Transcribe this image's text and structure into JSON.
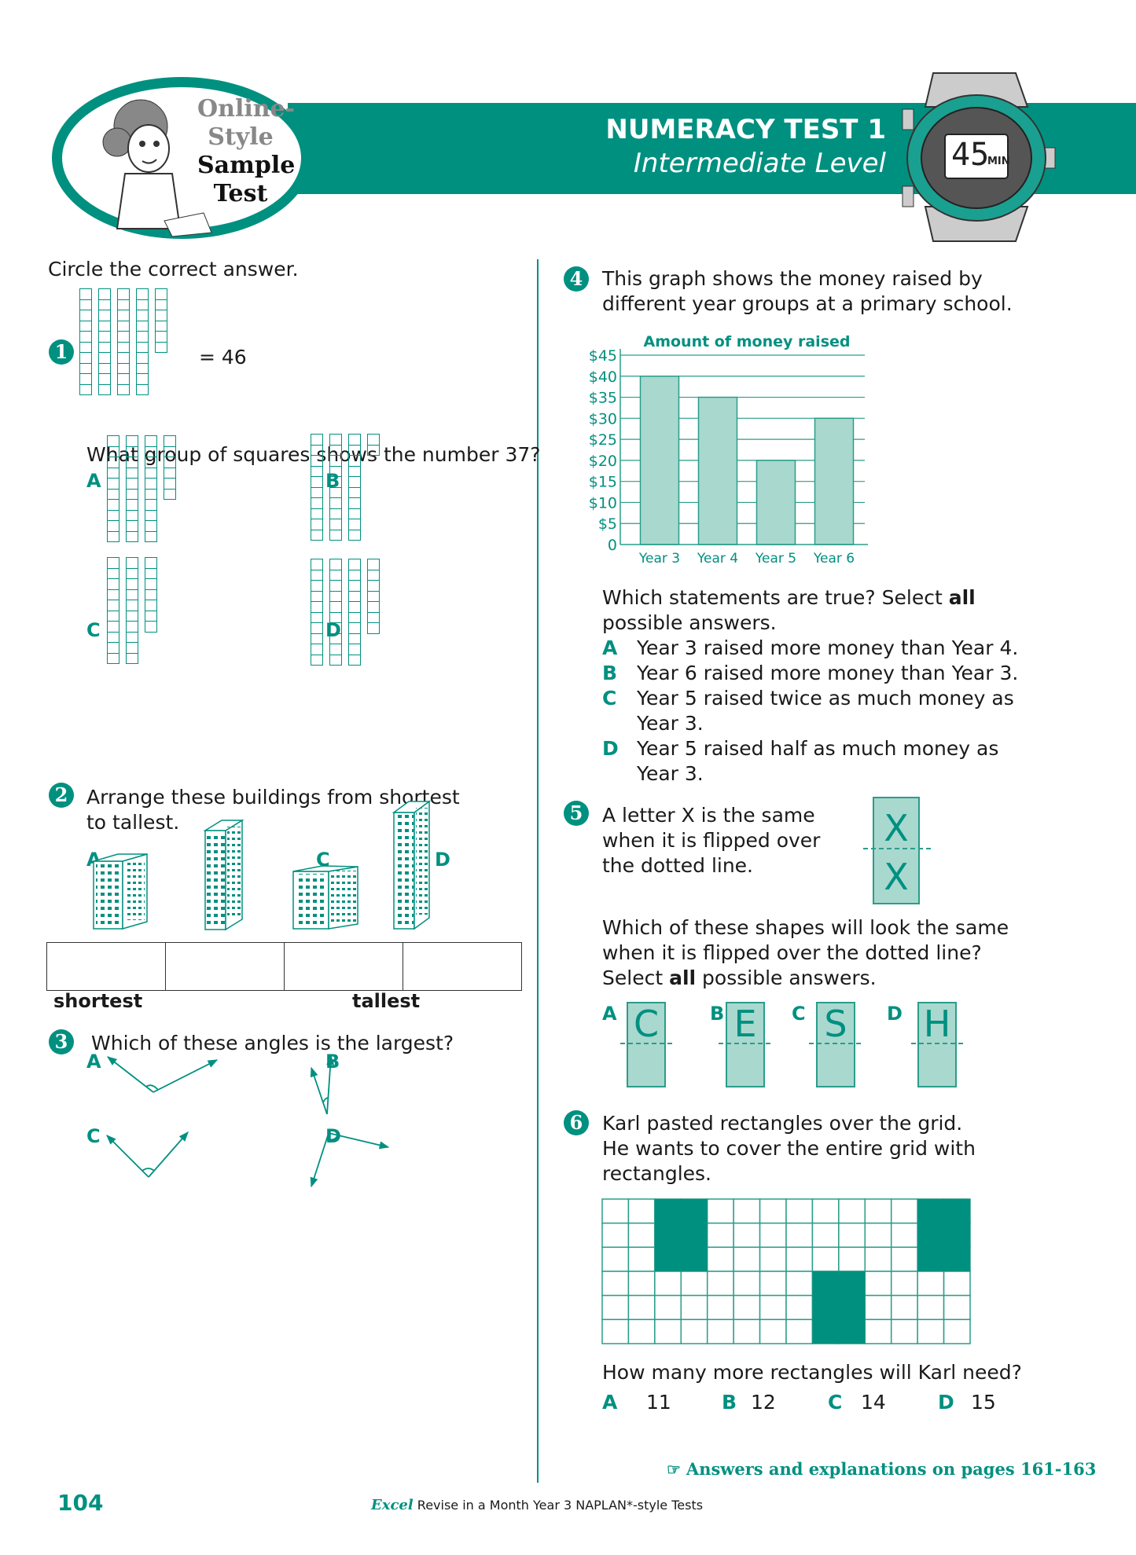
{
  "header": {
    "logo_lines": [
      "Online-",
      "Style",
      "Sample",
      "Test"
    ],
    "title": "NUMERACY TEST 1",
    "subtitle": "Intermediate Level",
    "timer_value": "45",
    "timer_unit": "MIN"
  },
  "colors": {
    "accent": "#009080",
    "accent_light": "#a9d8cf"
  },
  "instruction": "Circle the correct answer.",
  "q1": {
    "number": "1",
    "example": {
      "tens": 4,
      "ones": 6
    },
    "equals": "= 46",
    "question": "What group of squares shows the number 37?",
    "options": [
      {
        "label": "A",
        "tens": 3,
        "ones": 6
      },
      {
        "label": "B",
        "tens": 3,
        "ones": 2
      },
      {
        "label": "C",
        "tens": 2,
        "ones": 7
      },
      {
        "label": "D",
        "tens": 3,
        "ones": 7
      }
    ]
  },
  "q2": {
    "number": "2",
    "question_line1": "Arrange these buildings from shortest",
    "question_line2": "to tallest.",
    "options": [
      "A",
      "B",
      "C",
      "D"
    ],
    "shortest": "shortest",
    "tallest": "tallest"
  },
  "q3": {
    "number": "3",
    "question": "Which of these angles is the largest?",
    "options": [
      "A",
      "B",
      "C",
      "D"
    ]
  },
  "q4": {
    "number": "4",
    "question_line1": "This graph shows the money raised by",
    "question_line2": "different year groups at a primary school.",
    "prompt_line1_a": "Which statements are true? Select ",
    "prompt_line1_b": "all",
    "prompt_line2": "possible answers.",
    "statements": [
      {
        "label": "A",
        "lines": [
          "Year 3 raised more money than Year 4."
        ]
      },
      {
        "label": "B",
        "lines": [
          "Year 6 raised more money than Year 3."
        ]
      },
      {
        "label": "C",
        "lines": [
          "Year 5 raised twice as much money as",
          "Year 3."
        ]
      },
      {
        "label": "D",
        "lines": [
          "Year 5 raised half as much money as",
          "Year 3."
        ]
      }
    ]
  },
  "chart_data": {
    "type": "bar",
    "title": "Amount of money raised",
    "categories": [
      "Year 3",
      "Year 4",
      "Year 5",
      "Year 6"
    ],
    "values": [
      40,
      35,
      20,
      30
    ],
    "ylim": [
      0,
      45
    ],
    "yticks": [
      "0",
      "$5",
      "$10",
      "$15",
      "$20",
      "$25",
      "$30",
      "$35",
      "$40",
      "$45"
    ],
    "xlabel": "",
    "ylabel": "",
    "grid": true
  },
  "q5": {
    "number": "5",
    "text_lines": [
      "A letter X is the same",
      "when it is flipped over",
      "the dotted line."
    ],
    "example_letter": "X",
    "question_lines": [
      "Which of these shapes will look the same",
      "when it is flipped over the dotted line?"
    ],
    "select_a": "Select ",
    "select_b": "all",
    "select_c": " possible answers.",
    "options": [
      {
        "label": "A",
        "letter": "C"
      },
      {
        "label": "B",
        "letter": "E"
      },
      {
        "label": "C",
        "letter": "S"
      },
      {
        "label": "D",
        "letter": "H"
      }
    ]
  },
  "q6": {
    "number": "6",
    "text_lines": [
      "Karl pasted rectangles over the grid.",
      "He wants to cover the entire grid with",
      "rectangles."
    ],
    "grid": {
      "columns": 14,
      "rows": 6,
      "filled_rectangles": [
        {
          "col": 2,
          "row": 0,
          "w": 2,
          "h": 3
        },
        {
          "col": 12,
          "row": 0,
          "w": 2,
          "h": 3
        },
        {
          "col": 8,
          "row": 3,
          "w": 2,
          "h": 3
        }
      ]
    },
    "question": "How many more rectangles will Karl need?",
    "options": [
      {
        "label": "A",
        "value": "11"
      },
      {
        "label": "B",
        "value": "12"
      },
      {
        "label": "C",
        "value": "14"
      },
      {
        "label": "D",
        "value": "15"
      }
    ]
  },
  "footer": {
    "answers_link": "Answers and explanations on pages 161-163",
    "page_number": "104",
    "brand": "Excel",
    "book_title": "Revise in a Month Year 3 NAPLAN*-style Tests"
  }
}
